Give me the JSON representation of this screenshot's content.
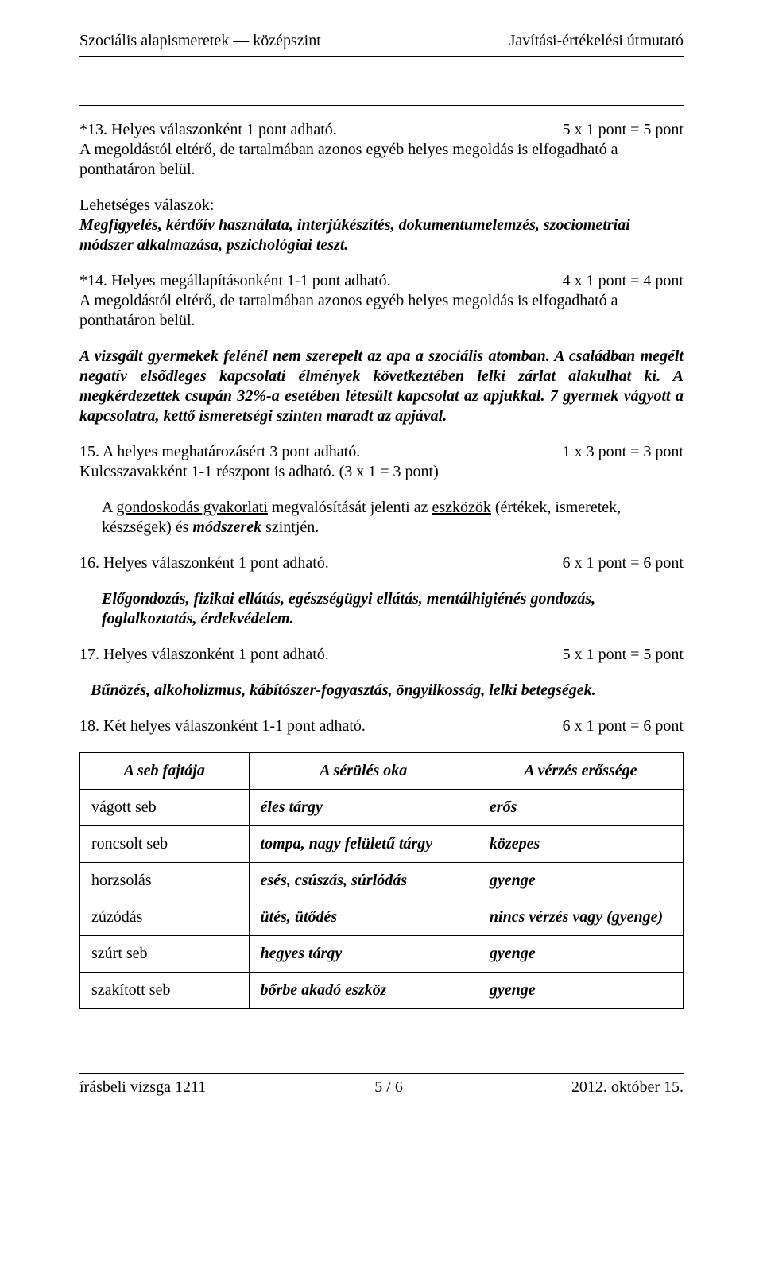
{
  "header": {
    "left": "Szociális alapismeretek — középszint",
    "right": "Javítási-értékelési útmutató"
  },
  "q13": {
    "title": "*13. Helyes válaszonként 1 pont adható.",
    "points": "5 x 1 pont = 5 pont",
    "note": "A megoldástól eltérő, de tartalmában azonos egyéb helyes megoldás is elfogadható a ponthatáron belül.",
    "lead": "Lehetséges válaszok:",
    "answers_a": "Megfigyelés, kérdőív használata, interjúkészítés, dokumentumelemzés, szociometriai",
    "answers_b": "módszer alkalmazása, pszichológiai teszt."
  },
  "q14": {
    "title": "*14. Helyes megállapításonként 1-1 pont adható.",
    "points": "4 x 1 pont = 4 pont",
    "note": "A megoldástól eltérő, de tartalmában azonos egyéb helyes megoldás is elfogadható a ponthatáron belül.",
    "para": "A vizsgált gyermekek felénél nem szerepelt az apa a szociális atomban. A családban megélt negatív elsődleges kapcsolati élmények következtében lelki zárlat alakulhat ki. A megkérdezettek csupán 32%-a esetében létesült kapcsolat az apjukkal. 7 gyermek vágyott a kapcsolatra, kettő ismeretségi szinten maradt az apjával."
  },
  "q15": {
    "title": "15. A helyes meghatározásért 3 pont adható.",
    "points": "1 x 3 pont = 3 pont",
    "sub": "Kulcsszavakként 1-1 részpont is adható. (3 x 1 = 3 pont)",
    "p_pre": "A ",
    "p_u1": "gondoskodás gyakorlati",
    "p_mid1": " megvalósítását jelenti az ",
    "p_u2": "eszközök",
    "p_mid2": " (értékek, ismeretek, készségek) és ",
    "p_bi": "módszerek",
    "p_after": " szintjén."
  },
  "q16": {
    "title": "16. Helyes válaszonként 1 pont adható.",
    "points": "6 x 1 pont = 6 pont",
    "line1": "Előgondozás, fizikai ellátás, egészségügyi ellátás, mentálhigiénés gondozás,",
    "line2": "foglalkoztatás, érdekvédelem."
  },
  "q17": {
    "title": "17. Helyes válaszonként 1 pont adható.",
    "points": "5 x 1 pont = 5 pont",
    "line": "Bűnözés, alkoholizmus, kábítószer-fogyasztás, öngyilkosság, lelki betegségek."
  },
  "q18": {
    "title": "18. Két helyes válaszonként 1-1 pont adható.",
    "points": "6 x 1 pont = 6 pont",
    "table": {
      "headers": [
        "A seb fajtája",
        "A sérülés oka",
        "A vérzés erőssége"
      ],
      "rows": [
        [
          "vágott seb",
          "éles tárgy",
          "erős"
        ],
        [
          "roncsolt seb",
          "tompa, nagy felületű tárgy",
          "közepes"
        ],
        [
          "horzsolás",
          "esés, csúszás, súrlódás",
          "gyenge"
        ],
        [
          "zúzódás",
          "ütés, ütődés",
          "nincs vérzés vagy (gyenge)"
        ],
        [
          "szúrt seb",
          "hegyes tárgy",
          "gyenge"
        ],
        [
          "szakított seb",
          "bőrbe akadó eszköz",
          "gyenge"
        ]
      ]
    }
  },
  "footer": {
    "left": "írásbeli vizsga 1211",
    "center": "5 / 6",
    "right": "2012. október 15."
  },
  "colors": {
    "text": "#000000",
    "bg": "#ffffff",
    "rule": "#000000"
  }
}
